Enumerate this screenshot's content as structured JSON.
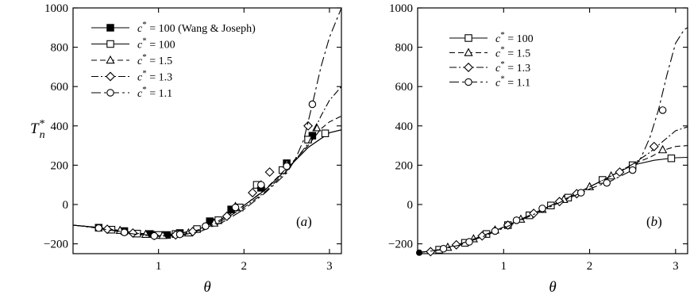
{
  "chart_data": [
    {
      "panel": "(a)",
      "type": "line",
      "xlabel": "θ",
      "ylabel": "T*n",
      "xlim": [
        0,
        3.14
      ],
      "ylim": [
        -250,
        1000
      ],
      "xticks": [
        1,
        2,
        3
      ],
      "yticks": [
        -200,
        0,
        200,
        400,
        600,
        800,
        1000
      ],
      "ytick_labels": [
        "−200",
        "0",
        "200",
        "400",
        "600",
        "800",
        "1000"
      ],
      "legend_position": "top",
      "annotation": "(a)",
      "series": [
        {
          "name": "c* = 100 (Wang & Joseph)",
          "marker": "filled-square",
          "dash": "",
          "x": [
            0,
            0.25,
            0.5,
            0.75,
            1.0,
            1.25,
            1.5,
            1.75,
            2.0,
            2.25,
            2.5,
            2.75,
            3.0,
            3.14
          ],
          "y": [
            -105,
            -115,
            -130,
            -145,
            -155,
            -148,
            -120,
            -70,
            -5,
            75,
            180,
            290,
            365,
            380
          ],
          "marker_x": [
            0.3,
            0.6,
            0.9,
            1.1,
            1.25,
            1.6,
            1.85,
            2.2,
            2.5,
            2.8
          ],
          "marker_y": [
            -118,
            -135,
            -150,
            -155,
            -145,
            -85,
            -25,
            85,
            210,
            350
          ]
        },
        {
          "name": "c* = 100",
          "marker": "open-square",
          "dash": "",
          "x": [
            0,
            0.25,
            0.5,
            0.75,
            1.0,
            1.25,
            1.5,
            1.75,
            2.0,
            2.25,
            2.5,
            2.75,
            3.0,
            3.14
          ],
          "y": [
            -105,
            -115,
            -130,
            -145,
            -155,
            -148,
            -120,
            -70,
            -5,
            75,
            180,
            290,
            365,
            380
          ],
          "marker_x": [
            0.45,
            0.75,
            1.0,
            1.2,
            1.45,
            1.7,
            1.95,
            2.15,
            2.45,
            2.75,
            2.95
          ],
          "marker_y": [
            -128,
            -148,
            -155,
            -150,
            -125,
            -80,
            -15,
            100,
            175,
            330,
            362
          ]
        },
        {
          "name": "c* = 1.5",
          "marker": "open-triangle",
          "dash": "7,4",
          "x": [
            0,
            0.25,
            0.5,
            0.75,
            1.0,
            1.25,
            1.5,
            1.75,
            2.0,
            2.25,
            2.5,
            2.75,
            2.9,
            3.0,
            3.14
          ],
          "y": [
            -105,
            -115,
            -130,
            -147,
            -158,
            -152,
            -125,
            -72,
            -5,
            78,
            185,
            300,
            385,
            420,
            450
          ],
          "marker_x": [
            0.55,
            0.85,
            1.05,
            1.35,
            1.65,
            1.9,
            2.2,
            2.5,
            2.85
          ],
          "marker_y": [
            -132,
            -152,
            -158,
            -145,
            -95,
            -10,
            100,
            205,
            390
          ]
        },
        {
          "name": "c* = 1.3",
          "marker": "open-diamond",
          "dash": "9,3,2,3",
          "x": [
            0,
            0.25,
            0.5,
            0.75,
            1.0,
            1.25,
            1.5,
            1.75,
            2.0,
            2.25,
            2.5,
            2.75,
            2.9,
            3.0,
            3.14
          ],
          "y": [
            -105,
            -117,
            -133,
            -150,
            -160,
            -155,
            -130,
            -80,
            -15,
            65,
            170,
            310,
            450,
            530,
            600
          ],
          "marker_x": [
            0.4,
            0.7,
            0.95,
            1.2,
            1.4,
            1.8,
            2.1,
            2.3,
            2.75
          ],
          "marker_y": [
            -126,
            -145,
            -158,
            -155,
            -138,
            -60,
            60,
            165,
            400
          ]
        },
        {
          "name": "c* = 1.1",
          "marker": "open-circle",
          "dash": "12,4,3,4",
          "x": [
            0,
            0.25,
            0.5,
            0.75,
            1.0,
            1.25,
            1.5,
            1.75,
            2.0,
            2.25,
            2.5,
            2.6,
            2.7,
            2.8,
            2.9,
            3.0,
            3.14
          ],
          "y": [
            -105,
            -118,
            -135,
            -153,
            -162,
            -158,
            -135,
            -90,
            -25,
            60,
            160,
            230,
            330,
            510,
            700,
            850,
            1000
          ],
          "marker_x": [
            0.3,
            0.6,
            0.95,
            1.25,
            1.55,
            1.9,
            2.2,
            2.5,
            2.8
          ],
          "marker_y": [
            -120,
            -142,
            -160,
            -152,
            -110,
            -15,
            100,
            195,
            510
          ]
        }
      ]
    },
    {
      "panel": "(b)",
      "type": "line",
      "xlabel": "θ",
      "ylabel": "",
      "xlim": [
        0,
        3.14
      ],
      "ylim": [
        -250,
        1000
      ],
      "xticks": [
        1,
        2,
        3
      ],
      "yticks": [
        -200,
        0,
        200,
        400,
        600,
        800,
        1000
      ],
      "ytick_labels": [
        "−200",
        "0",
        "200",
        "400",
        "600",
        "800",
        "1000"
      ],
      "legend_position": "top",
      "annotation": "(b)",
      "series": [
        {
          "name": "c* = 100",
          "marker": "open-square",
          "dash": "",
          "x": [
            0,
            0.25,
            0.5,
            0.75,
            1.0,
            1.25,
            1.5,
            1.75,
            2.0,
            2.25,
            2.5,
            2.75,
            3.0,
            3.14
          ],
          "y": [
            -245,
            -230,
            -200,
            -160,
            -115,
            -65,
            -15,
            35,
            90,
            145,
            200,
            225,
            238,
            240
          ],
          "marker_x": [
            0.25,
            0.55,
            0.8,
            1.05,
            1.3,
            1.55,
            1.75,
            2.15,
            2.5,
            2.95
          ],
          "marker_y": [
            -230,
            -195,
            -150,
            -105,
            -55,
            -5,
            35,
            125,
            200,
            235
          ]
        },
        {
          "name": "c* = 1.5",
          "marker": "open-triangle",
          "dash": "7,4",
          "x": [
            0,
            0.25,
            0.5,
            0.75,
            1.0,
            1.25,
            1.5,
            1.75,
            2.0,
            2.25,
            2.5,
            2.7,
            2.85,
            3.0,
            3.14
          ],
          "y": [
            -245,
            -230,
            -200,
            -160,
            -115,
            -65,
            -15,
            35,
            90,
            145,
            205,
            240,
            275,
            295,
            300
          ],
          "marker_x": [
            0.35,
            0.65,
            0.9,
            1.2,
            1.45,
            1.7,
            2.0,
            2.25,
            2.85
          ],
          "marker_y": [
            -218,
            -175,
            -130,
            -75,
            -25,
            25,
            90,
            145,
            278
          ]
        },
        {
          "name": "c* = 1.3",
          "marker": "open-diamond",
          "dash": "9,3,2,3",
          "x": [
            0,
            0.25,
            0.5,
            0.75,
            1.0,
            1.25,
            1.5,
            1.75,
            2.0,
            2.25,
            2.5,
            2.7,
            2.85,
            3.0,
            3.14
          ],
          "y": [
            -245,
            -230,
            -200,
            -160,
            -115,
            -65,
            -15,
            35,
            90,
            145,
            205,
            265,
            320,
            375,
            395
          ],
          "marker_x": [
            0.15,
            0.45,
            0.75,
            1.05,
            1.35,
            1.65,
            1.85,
            2.35,
            2.75
          ],
          "marker_y": [
            -240,
            -205,
            -160,
            -105,
            -45,
            15,
            55,
            165,
            295
          ]
        },
        {
          "name": "c* = 1.1",
          "marker": "open-circle",
          "dash": "12,4,3,4",
          "x": [
            0,
            0.25,
            0.5,
            0.75,
            1.0,
            1.25,
            1.5,
            1.75,
            2.0,
            2.25,
            2.5,
            2.6,
            2.7,
            2.8,
            2.9,
            3.0,
            3.1,
            3.14
          ],
          "y": [
            -245,
            -232,
            -205,
            -165,
            -120,
            -70,
            -20,
            30,
            80,
            120,
            175,
            240,
            340,
            480,
            660,
            820,
            890,
            900
          ],
          "marker_x": [
            0.3,
            0.6,
            0.9,
            1.15,
            1.45,
            1.9,
            2.2,
            2.5,
            2.85
          ],
          "marker_y": [
            -225,
            -190,
            -135,
            -80,
            -20,
            60,
            110,
            175,
            480
          ]
        }
      ]
    }
  ]
}
